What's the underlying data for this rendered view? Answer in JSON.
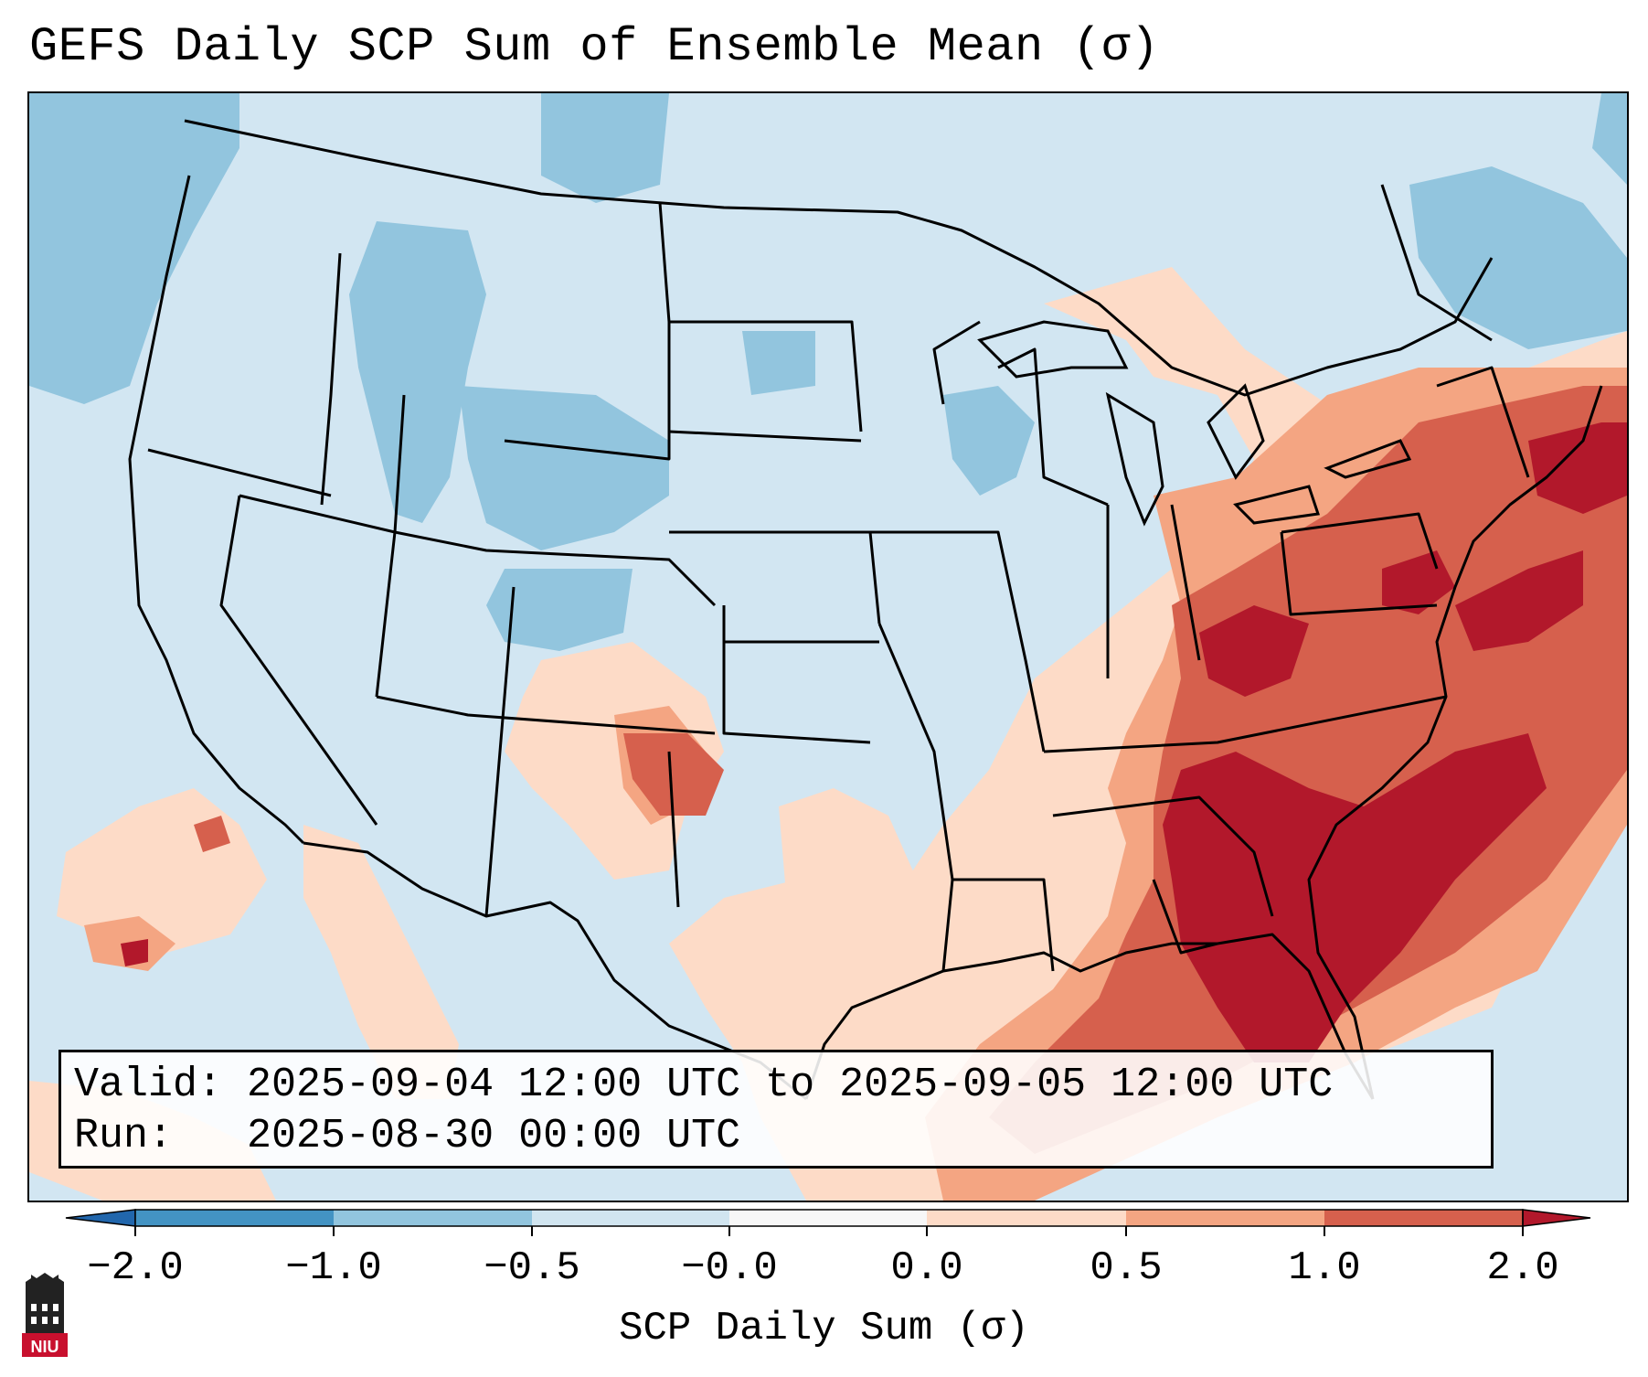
{
  "title": "GEFS Daily SCP Sum of Ensemble Mean (σ)",
  "info": {
    "valid_line": "Valid: 2025-09-04 12:00 UTC to 2025-09-05 12:00 UTC",
    "run_line": "Run:   2025-08-30 00:00 UTC"
  },
  "colorbar": {
    "label": "SCP Daily Sum (σ)",
    "ticks": [
      "−2.0",
      "−1.0",
      "−0.5",
      "−0.0",
      "0.0",
      "0.5",
      "1.0",
      "2.0"
    ],
    "colors": [
      "#4393c3",
      "#92c5de",
      "#d1e5f0",
      "#f7f7f7",
      "#fddbc7",
      "#f4a582",
      "#d6604d",
      "#b2182b"
    ],
    "extend_low_color": "#2166ac",
    "extend_high_color": "#b2182b"
  },
  "logo": {
    "name": "NIU",
    "text": "NIU",
    "color": "#c8102e"
  }
}
